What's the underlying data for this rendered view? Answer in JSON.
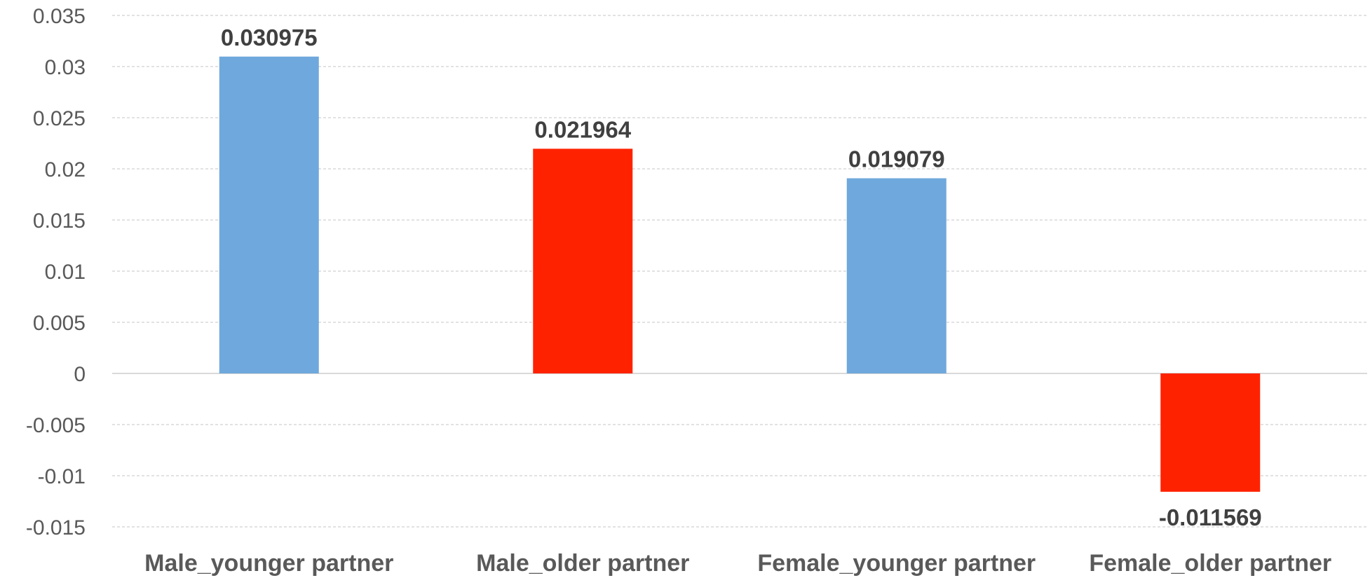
{
  "chart_data": {
    "type": "bar",
    "title": "",
    "xlabel": "",
    "ylabel": "",
    "categories": [
      "Male_younger partner",
      "Male_older partner",
      "Female_younger partner",
      "Female_older partner"
    ],
    "values": [
      0.030975,
      0.021964,
      0.019079,
      -0.011569
    ],
    "value_labels": [
      "0.030975",
      "0.021964",
      "0.019079",
      "-0.011569"
    ],
    "bar_colors": [
      "#6fa8dc",
      "#ff2200",
      "#6fa8dc",
      "#ff2200"
    ],
    "ylim": [
      -0.015,
      0.035
    ],
    "yticks": [
      0.035,
      0.03,
      0.025,
      0.02,
      0.015,
      0.01,
      0.005,
      0,
      -0.005,
      -0.01,
      -0.015
    ],
    "ytick_labels": [
      "0.035",
      "0.03",
      "0.025",
      "0.02",
      "0.015",
      "0.01",
      "0.005",
      "0",
      "-0.005",
      "-0.01",
      "-0.015"
    ],
    "grid": true,
    "legend": "none"
  }
}
